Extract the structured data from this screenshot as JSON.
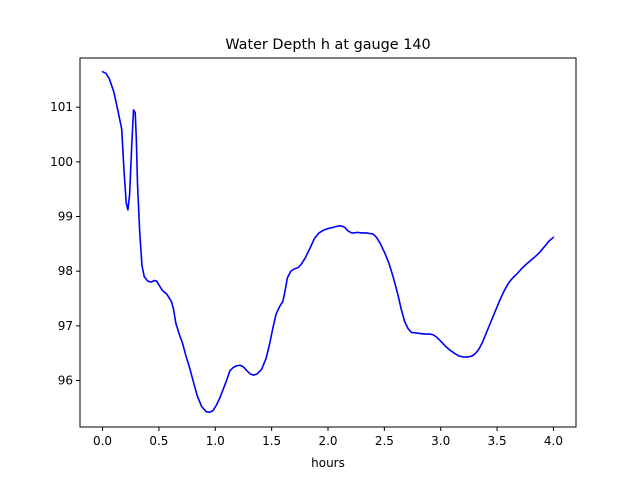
{
  "chart_data": {
    "type": "line",
    "title": "Water Depth h at gauge 140",
    "xlabel": "hours",
    "ylabel": "",
    "xlim": [
      -0.2,
      4.2
    ],
    "ylim": [
      95.15,
      101.9
    ],
    "xticks": [
      0.0,
      0.5,
      1.0,
      1.5,
      2.0,
      2.5,
      3.0,
      3.5,
      4.0
    ],
    "xtick_labels": [
      "0.0",
      "0.5",
      "1.0",
      "1.5",
      "2.0",
      "2.5",
      "3.0",
      "3.5",
      "4.0"
    ],
    "yticks": [
      96,
      97,
      98,
      99,
      100,
      101
    ],
    "ytick_labels": [
      "96",
      "97",
      "98",
      "99",
      "100",
      "101"
    ],
    "grid": false,
    "series": [
      {
        "color": "#0000ff",
        "x": [
          0.0,
          0.03,
          0.06,
          0.1,
          0.14,
          0.17,
          0.19,
          0.21,
          0.225,
          0.24,
          0.26,
          0.275,
          0.29,
          0.3,
          0.31,
          0.33,
          0.35,
          0.37,
          0.4,
          0.43,
          0.46,
          0.48,
          0.5,
          0.53,
          0.57,
          0.61,
          0.63,
          0.65,
          0.68,
          0.71,
          0.74,
          0.77,
          0.8,
          0.84,
          0.88,
          0.92,
          0.95,
          0.98,
          1.01,
          1.04,
          1.07,
          1.1,
          1.13,
          1.16,
          1.19,
          1.22,
          1.25,
          1.28,
          1.31,
          1.34,
          1.37,
          1.41,
          1.45,
          1.48,
          1.51,
          1.54,
          1.57,
          1.6,
          1.62,
          1.64,
          1.67,
          1.7,
          1.73,
          1.76,
          1.8,
          1.84,
          1.88,
          1.92,
          1.96,
          2.0,
          2.04,
          2.08,
          2.11,
          2.13,
          2.15,
          2.17,
          2.19,
          2.21,
          2.23,
          2.26,
          2.3,
          2.34,
          2.37,
          2.4,
          2.43,
          2.46,
          2.5,
          2.54,
          2.58,
          2.62,
          2.65,
          2.68,
          2.71,
          2.74,
          2.78,
          2.82,
          2.86,
          2.9,
          2.93,
          2.96,
          3.0,
          3.04,
          3.08,
          3.12,
          3.16,
          3.2,
          3.24,
          3.28,
          3.31,
          3.34,
          3.37,
          3.4,
          3.44,
          3.48,
          3.52,
          3.56,
          3.6,
          3.64,
          3.68,
          3.72,
          3.76,
          3.8,
          3.84,
          3.88,
          3.92,
          3.96,
          4.0
        ],
        "y": [
          101.65,
          101.62,
          101.52,
          101.28,
          100.9,
          100.6,
          99.85,
          99.25,
          99.12,
          99.4,
          100.35,
          100.95,
          100.9,
          100.4,
          99.6,
          98.7,
          98.1,
          97.9,
          97.82,
          97.8,
          97.83,
          97.82,
          97.75,
          97.65,
          97.58,
          97.45,
          97.3,
          97.05,
          96.85,
          96.68,
          96.45,
          96.25,
          96.02,
          95.72,
          95.52,
          95.43,
          95.42,
          95.45,
          95.55,
          95.68,
          95.84,
          96.0,
          96.18,
          96.24,
          96.27,
          96.28,
          96.25,
          96.18,
          96.12,
          96.1,
          96.12,
          96.2,
          96.4,
          96.65,
          96.95,
          97.22,
          97.35,
          97.45,
          97.65,
          97.88,
          98.0,
          98.04,
          98.06,
          98.12,
          98.25,
          98.42,
          98.6,
          98.7,
          98.75,
          98.78,
          98.8,
          98.82,
          98.83,
          98.82,
          98.8,
          98.75,
          98.72,
          98.7,
          98.7,
          98.71,
          98.7,
          98.7,
          98.69,
          98.68,
          98.62,
          98.52,
          98.35,
          98.15,
          97.88,
          97.57,
          97.3,
          97.08,
          96.95,
          96.88,
          96.87,
          96.86,
          96.85,
          96.85,
          96.84,
          96.8,
          96.72,
          96.63,
          96.56,
          96.5,
          96.45,
          96.43,
          96.43,
          96.45,
          96.5,
          96.58,
          96.7,
          96.85,
          97.05,
          97.25,
          97.45,
          97.63,
          97.78,
          97.88,
          97.96,
          98.05,
          98.13,
          98.2,
          98.27,
          98.35,
          98.45,
          98.55,
          98.62
        ]
      }
    ]
  }
}
